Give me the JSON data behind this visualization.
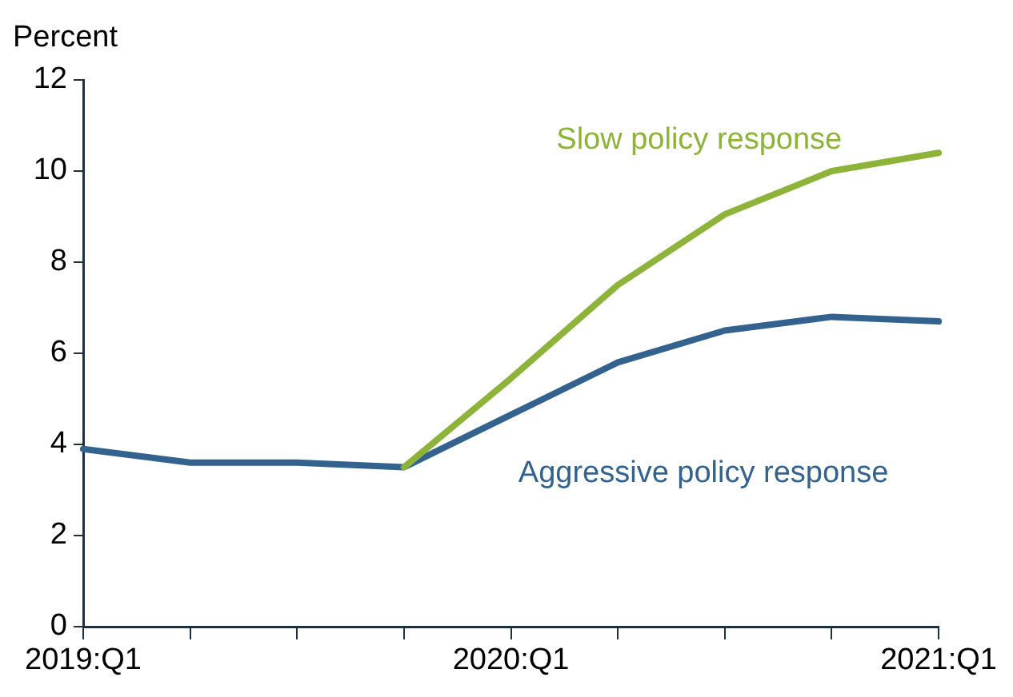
{
  "chart_data": {
    "type": "line",
    "ylabel": "Percent",
    "categories": [
      "2019:Q1",
      null,
      null,
      null,
      "2020:Q1",
      null,
      null,
      null,
      "2021:Q1"
    ],
    "series": [
      {
        "name": "Slow policy response",
        "color": "#8db33a",
        "values": [
          null,
          null,
          null,
          3.5,
          5.45,
          7.5,
          9.05,
          10.0,
          10.4
        ]
      },
      {
        "name": "Aggressive policy response",
        "color": "#34628f",
        "values": [
          3.9,
          3.6,
          3.6,
          3.5,
          4.65,
          5.8,
          6.5,
          6.8,
          6.7
        ]
      }
    ],
    "ylim": [
      0,
      12
    ],
    "yticks": [
      0,
      2,
      4,
      6,
      8,
      10,
      12
    ],
    "grid": false,
    "legend": false,
    "marker": "none",
    "line_style": "solid"
  }
}
